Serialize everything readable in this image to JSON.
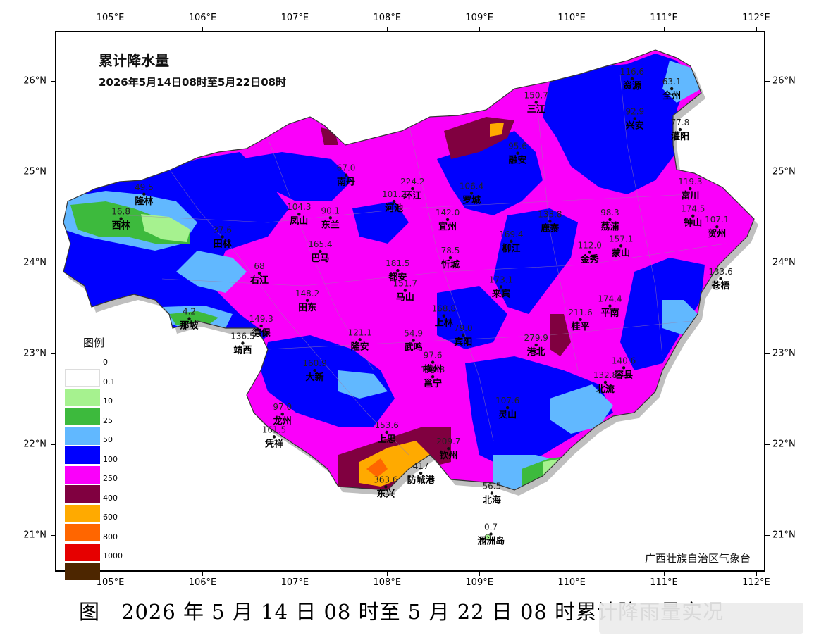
{
  "map": {
    "title": "累计降水量",
    "subtitle": "2026年5月14日08时至5月22日08时",
    "source": "广西壮族自治区气象台",
    "caption": "图　2026 年 5 月 14 日 08 时至 5 月 22 日 08 时累计降雨量实况",
    "lon_labels": [
      "105°E",
      "106°E",
      "107°E",
      "108°E",
      "109°E",
      "110°E",
      "111°E",
      "112°E"
    ],
    "lat_labels": [
      "26°N",
      "25°N",
      "24°N",
      "23°N",
      "22°N",
      "21°N"
    ],
    "lon_range": [
      104.4,
      112.1
    ],
    "lat_range": [
      20.6,
      26.55
    ]
  },
  "legend": {
    "title": "图例",
    "items": [
      {
        "label": "0",
        "color": "#ffffff"
      },
      {
        "label": "0.1",
        "color": "#a6f28f"
      },
      {
        "label": "10",
        "color": "#3dba3d"
      },
      {
        "label": "25",
        "color": "#61b8ff"
      },
      {
        "label": "50",
        "color": "#0000fe"
      },
      {
        "label": "100",
        "color": "#fa00fa"
      },
      {
        "label": "250",
        "color": "#800040"
      },
      {
        "label": "400",
        "color": "#ffaa00"
      },
      {
        "label": "600",
        "color": "#ff6600"
      },
      {
        "label": "800",
        "color": "#e60000"
      },
      {
        "label": "1000",
        "color": "#4d2600"
      }
    ]
  },
  "stations": [
    {
      "name": "隆林",
      "value": "49.5",
      "lon": 105.35,
      "lat": 24.77
    },
    {
      "name": "西林",
      "value": "16.8",
      "lon": 105.1,
      "lat": 24.5
    },
    {
      "name": "田林",
      "value": "37.6",
      "lon": 106.2,
      "lat": 24.3
    },
    {
      "name": "那坡",
      "value": "4.2",
      "lon": 105.84,
      "lat": 23.4
    },
    {
      "name": "右江",
      "value": "68",
      "lon": 106.6,
      "lat": 23.9
    },
    {
      "name": "凤山",
      "value": "104.3",
      "lon": 107.03,
      "lat": 24.55
    },
    {
      "name": "东兰",
      "value": "90.1",
      "lon": 107.37,
      "lat": 24.51
    },
    {
      "name": "南丹",
      "value": "67.0",
      "lon": 107.54,
      "lat": 24.98
    },
    {
      "name": "环江",
      "value": "224.2",
      "lon": 108.26,
      "lat": 24.83
    },
    {
      "name": "河池",
      "value": "101.2",
      "lon": 108.06,
      "lat": 24.69
    },
    {
      "name": "巴马",
      "value": "165.4",
      "lon": 107.26,
      "lat": 24.14
    },
    {
      "name": "都安",
      "value": "181.5",
      "lon": 108.1,
      "lat": 23.93
    },
    {
      "name": "马山",
      "value": "151.7",
      "lon": 108.18,
      "lat": 23.71
    },
    {
      "name": "忻城",
      "value": "78.5",
      "lon": 108.67,
      "lat": 24.07
    },
    {
      "name": "来宾",
      "value": "173.1",
      "lon": 109.22,
      "lat": 23.75
    },
    {
      "name": "上林",
      "value": "168.8",
      "lon": 108.6,
      "lat": 23.43
    },
    {
      "name": "宾阳",
      "value": "79.0",
      "lon": 108.81,
      "lat": 23.22
    },
    {
      "name": "隆安",
      "value": "121.1",
      "lon": 107.69,
      "lat": 23.17
    },
    {
      "name": "武鸣",
      "value": "54.9",
      "lon": 108.27,
      "lat": 23.16
    },
    {
      "name": "德保",
      "value": "149.3",
      "lon": 106.62,
      "lat": 23.32
    },
    {
      "name": "靖西",
      "value": "136.5",
      "lon": 106.42,
      "lat": 23.13
    },
    {
      "name": "大新",
      "value": "160.9",
      "lon": 107.2,
      "lat": 22.83
    },
    {
      "name": "田东",
      "value": "148.2",
      "lon": 107.12,
      "lat": 23.6
    },
    {
      "name": "凭祥",
      "value": "161.5",
      "lon": 106.76,
      "lat": 22.1
    },
    {
      "name": "上思",
      "value": "153.6",
      "lon": 107.98,
      "lat": 22.15
    },
    {
      "name": "东兴",
      "value": "363.6",
      "lon": 107.97,
      "lat": 21.55
    },
    {
      "name": "钦州",
      "value": "209.7",
      "lon": 108.65,
      "lat": 21.97
    },
    {
      "name": "防城港",
      "value": "417",
      "lon": 108.35,
      "lat": 21.7
    },
    {
      "name": "邕宁",
      "value": "134.8",
      "lon": 108.48,
      "lat": 22.76
    },
    {
      "name": "横州",
      "value": "97.6",
      "lon": 108.48,
      "lat": 22.92
    },
    {
      "name": "北海",
      "value": "56.5",
      "lon": 109.12,
      "lat": 21.48
    },
    {
      "name": "涠洲岛",
      "value": "0.7",
      "lon": 109.11,
      "lat": 21.03
    },
    {
      "name": "灵山",
      "value": "107.6",
      "lon": 109.29,
      "lat": 22.42
    },
    {
      "name": "宜州",
      "value": "142.0",
      "lon": 108.64,
      "lat": 24.49
    },
    {
      "name": "罗城",
      "value": "106.4",
      "lon": 108.9,
      "lat": 24.78
    },
    {
      "name": "柳江",
      "value": "169.4",
      "lon": 109.33,
      "lat": 24.25
    },
    {
      "name": "鹿寨",
      "value": "133.8",
      "lon": 109.75,
      "lat": 24.47
    },
    {
      "name": "三江",
      "value": "150.7",
      "lon": 109.6,
      "lat": 25.78
    },
    {
      "name": "融安",
      "value": "95.6",
      "lon": 109.4,
      "lat": 25.22
    },
    {
      "name": "金秀",
      "value": "112.0",
      "lon": 110.18,
      "lat": 24.13
    },
    {
      "name": "蒙山",
      "value": "157.1",
      "lon": 110.52,
      "lat": 24.2
    },
    {
      "name": "平南",
      "value": "174.4",
      "lon": 110.4,
      "lat": 23.54
    },
    {
      "name": "桂平",
      "value": "211.6",
      "lon": 110.08,
      "lat": 23.39
    },
    {
      "name": "港北",
      "value": "279.9",
      "lon": 109.6,
      "lat": 23.11
    },
    {
      "name": "容县",
      "value": "140.6",
      "lon": 110.55,
      "lat": 22.86
    },
    {
      "name": "北流",
      "value": "132.8",
      "lon": 110.35,
      "lat": 22.7
    },
    {
      "name": "资源",
      "value": "116.6",
      "lon": 110.64,
      "lat": 26.04
    },
    {
      "name": "全州",
      "value": "63.1",
      "lon": 111.07,
      "lat": 25.93
    },
    {
      "name": "灌阳",
      "value": "77.8",
      "lon": 111.16,
      "lat": 25.48
    },
    {
      "name": "富川",
      "value": "119.3",
      "lon": 111.27,
      "lat": 24.83
    },
    {
      "name": "钟山",
      "value": "174.5",
      "lon": 111.3,
      "lat": 24.53
    },
    {
      "name": "贺州",
      "value": "107.1",
      "lon": 111.56,
      "lat": 24.41
    },
    {
      "name": "苍梧",
      "value": "133.6",
      "lon": 111.6,
      "lat": 23.84
    },
    {
      "name": "龙州",
      "value": "97.0",
      "lon": 106.85,
      "lat": 22.35
    },
    {
      "name": "荔浦",
      "value": "98.3",
      "lon": 110.4,
      "lat": 24.49
    },
    {
      "name": "兴安",
      "value": "92.9",
      "lon": 110.67,
      "lat": 25.6
    }
  ]
}
